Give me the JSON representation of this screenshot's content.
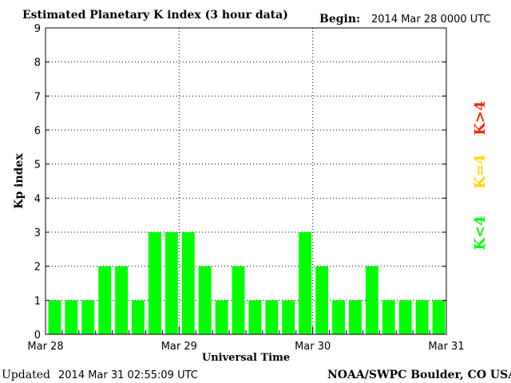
{
  "header": {
    "title": "Estimated Planetary K index (3 hour data)",
    "begin_label": "Begin:",
    "begin_value": "2014 Mar 28 0000 UTC"
  },
  "footer": {
    "updated_label": "Updated",
    "updated_value": "2014 Mar 31 02:55:09 UTC",
    "credit": "NOAA/SWPC Boulder, CO USA"
  },
  "legend": [
    {
      "label": "K<4",
      "color": "#00ff00"
    },
    {
      "label": "K=4",
      "color": "#ffd700"
    },
    {
      "label": "K>4",
      "color": "#ff2200"
    }
  ],
  "chart_data": {
    "type": "bar",
    "title": "Estimated Planetary K index (3 hour data)",
    "xlabel": "Universal Time",
    "ylabel": "Kp index",
    "ylim": [
      0,
      9
    ],
    "y_ticks": [
      "0",
      "1",
      "2",
      "3",
      "4",
      "5",
      "6",
      "7",
      "8",
      "9"
    ],
    "x_ticks": [
      "Mar 28",
      "Mar 29",
      "Mar 30",
      "Mar 31"
    ],
    "grid": "dotted lines at each day boundary and each integer Kp level",
    "bar_color": "#00ff00",
    "series": [
      {
        "values": [
          1,
          1,
          1,
          2,
          2,
          1,
          3,
          3,
          3,
          2,
          1,
          2,
          1,
          1,
          1,
          3,
          2,
          1,
          1,
          2,
          1,
          1,
          1,
          1
        ]
      }
    ]
  }
}
